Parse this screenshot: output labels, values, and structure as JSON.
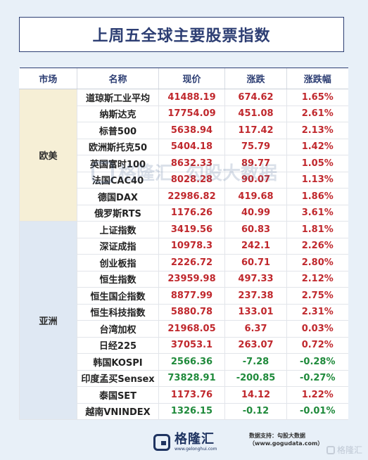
{
  "title": "上周五全球主要股票指数",
  "headers": [
    "市场",
    "名称",
    "现价",
    "涨跌",
    "涨跌幅"
  ],
  "markets": {
    "eu": "欧美",
    "asia": "亚洲"
  },
  "rows": [
    {
      "name": "道琼斯工业平均",
      "price": "41488.19",
      "change": "674.62",
      "pct": "1.65%",
      "dir": "up"
    },
    {
      "name": "纳斯达克",
      "price": "17754.09",
      "change": "451.08",
      "pct": "2.61%",
      "dir": "up"
    },
    {
      "name": "标普500",
      "price": "5638.94",
      "change": "117.42",
      "pct": "2.13%",
      "dir": "up"
    },
    {
      "name": "欧洲斯托克50",
      "price": "5404.18",
      "change": "75.79",
      "pct": "1.42%",
      "dir": "up"
    },
    {
      "name": "英国富时100",
      "price": "8632.33",
      "change": "89.77",
      "pct": "1.05%",
      "dir": "up"
    },
    {
      "name": "法国CAC40",
      "price": "8028.28",
      "change": "90.07",
      "pct": "1.13%",
      "dir": "up"
    },
    {
      "name": "德国DAX",
      "price": "22986.82",
      "change": "419.68",
      "pct": "1.86%",
      "dir": "up"
    },
    {
      "name": "俄罗斯RTS",
      "price": "1176.26",
      "change": "40.99",
      "pct": "3.61%",
      "dir": "up"
    },
    {
      "name": "上证指数",
      "price": "3419.56",
      "change": "60.83",
      "pct": "1.81%",
      "dir": "up"
    },
    {
      "name": "深证成指",
      "price": "10978.3",
      "change": "242.1",
      "pct": "2.26%",
      "dir": "up"
    },
    {
      "name": "创业板指",
      "price": "2226.72",
      "change": "60.71",
      "pct": "2.80%",
      "dir": "up"
    },
    {
      "name": "恒生指数",
      "price": "23959.98",
      "change": "497.33",
      "pct": "2.12%",
      "dir": "up"
    },
    {
      "name": "恒生国企指数",
      "price": "8877.99",
      "change": "237.38",
      "pct": "2.75%",
      "dir": "up"
    },
    {
      "name": "恒生科技指数",
      "price": "5880.78",
      "change": "133.01",
      "pct": "2.31%",
      "dir": "up"
    },
    {
      "name": "台湾加权",
      "price": "21968.05",
      "change": "6.37",
      "pct": "0.03%",
      "dir": "up"
    },
    {
      "name": "日经225",
      "price": "37053.1",
      "change": "263.07",
      "pct": "0.72%",
      "dir": "up"
    },
    {
      "name": "韩国KOSPI",
      "price": "2566.36",
      "change": "-7.28",
      "pct": "-0.28%",
      "dir": "down"
    },
    {
      "name": "印度孟买Sensex",
      "price": "73828.91",
      "change": "-200.85",
      "pct": "-0.27%",
      "dir": "down"
    },
    {
      "name": "泰国SET",
      "price": "1173.76",
      "change": "14.12",
      "pct": "1.22%",
      "dir": "up"
    },
    {
      "name": "越南VNINDEX",
      "price": "1326.15",
      "change": "-0.12",
      "pct": "-0.01%",
      "dir": "down"
    }
  ],
  "footer": {
    "logo_cn": "格隆汇",
    "logo_url": "www.gelonghui.com",
    "source": "数据支持：勾股大数据（www.gogudata.com）",
    "watermark": "格隆汇"
  },
  "center_watermark": {
    "left": "格隆汇",
    "right": "勾股大数据"
  },
  "colors": {
    "up": "#c0282d",
    "down": "#1f8a3b",
    "accent": "#2d3e73"
  }
}
